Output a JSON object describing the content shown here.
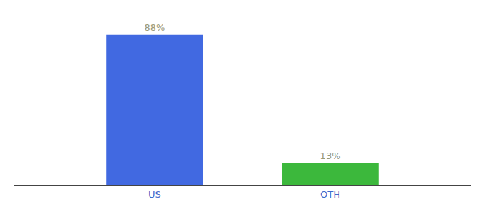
{
  "chart_data": {
    "type": "bar",
    "categories": [
      "US",
      "OTH"
    ],
    "values": [
      88,
      13
    ],
    "value_labels": [
      "88%",
      "13%"
    ],
    "colors": [
      "#4169e1",
      "#3cb83c"
    ],
    "ylim": [
      0,
      100
    ],
    "grid": false,
    "data_labels": true,
    "tick_labels": "x"
  }
}
